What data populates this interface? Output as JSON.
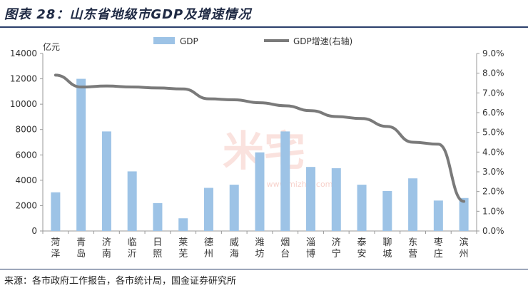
{
  "header": {
    "title": "图表 28：山东省地级市GDP及增速情况"
  },
  "footer": {
    "source": "来源：各市政府工作报告，各市统计局，国金证券研究所"
  },
  "watermark": {
    "text": "米宅",
    "url": "www.mizhai.com"
  },
  "colors": {
    "bar": "#9dc3e6",
    "line": "#7a7a7a",
    "axis": "#999999",
    "title": "#1f2a44"
  },
  "chart_data": {
    "type": "bar",
    "categories": [
      [
        "菏",
        "泽"
      ],
      [
        "青",
        "岛"
      ],
      [
        "济",
        "南"
      ],
      [
        "临",
        "沂"
      ],
      [
        "日",
        "照"
      ],
      [
        "莱",
        "芜"
      ],
      [
        "德",
        "州"
      ],
      [
        "威",
        "海"
      ],
      [
        "潍",
        "坊"
      ],
      [
        "烟",
        "台"
      ],
      [
        "淄",
        "博"
      ],
      [
        "济",
        "宁"
      ],
      [
        "泰",
        "安"
      ],
      [
        "聊",
        "城"
      ],
      [
        "东",
        "营"
      ],
      [
        "枣",
        "庄"
      ],
      [
        "滨",
        "州"
      ]
    ],
    "series": [
      {
        "name": "GDP",
        "type": "bar",
        "axis": "left",
        "values": [
          3050,
          12000,
          7850,
          4700,
          2200,
          1000,
          3400,
          3650,
          6200,
          7850,
          5050,
          4950,
          3650,
          3150,
          4150,
          2400,
          2600
        ]
      },
      {
        "name": "GDP增速(右轴)",
        "type": "line",
        "axis": "right",
        "values": [
          7.9,
          7.3,
          7.35,
          7.3,
          7.25,
          7.2,
          6.7,
          6.65,
          6.5,
          6.35,
          6.1,
          5.8,
          5.7,
          5.3,
          4.5,
          4.4,
          1.5
        ]
      }
    ],
    "ylabel": "亿元",
    "ylim": [
      0,
      14000
    ],
    "yticks": [
      "0",
      "2000",
      "4000",
      "6000",
      "8000",
      "10000",
      "12000",
      "14000"
    ],
    "y2lim": [
      0,
      9
    ],
    "y2ticks": [
      "0.0%",
      "1.0%",
      "2.0%",
      "3.0%",
      "4.0%",
      "5.0%",
      "6.0%",
      "7.0%",
      "8.0%",
      "9.0%"
    ],
    "legend": [
      "GDP",
      "GDP增速(右轴)"
    ],
    "legend_position": "top-center"
  }
}
